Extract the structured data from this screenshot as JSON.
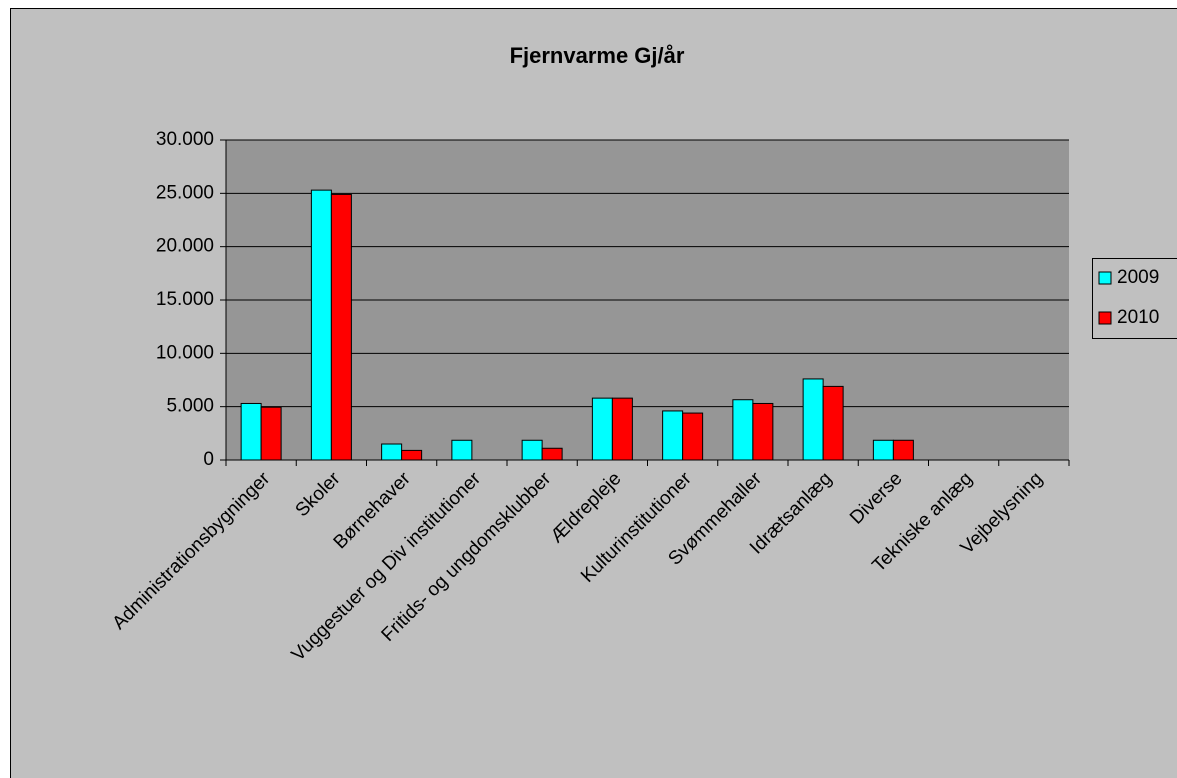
{
  "chart_data": {
    "type": "bar",
    "title": "Fjernvarme Gj/år",
    "categories": [
      "Administrationsbygninger",
      "Skoler",
      "Børnehaver",
      "Vuggestuer og Div institutioner",
      "Fritids- og ungdomsklubber",
      "Ældrepleje",
      "Kulturinstitutioner",
      "Svømmehaller",
      "Idrætsanlæg",
      "Diverse",
      "Tekniske anlæg",
      "Vejbelysning"
    ],
    "series": [
      {
        "name": "2009",
        "color": "#00ffff",
        "values": [
          5300,
          25300,
          1500,
          1850,
          1850,
          5800,
          4600,
          5650,
          7600,
          1850,
          null,
          null
        ]
      },
      {
        "name": "2010",
        "color": "#ff0000",
        "values": [
          4950,
          24900,
          900,
          null,
          1100,
          5800,
          4400,
          5300,
          6900,
          1850,
          null,
          null
        ]
      }
    ],
    "ylim": [
      0,
      30000
    ],
    "yticks": [
      0,
      {
        "value": 5000,
        "label": "5.000"
      },
      {
        "value": 10000,
        "label": "10.000"
      },
      {
        "value": 15000,
        "label": "15.000"
      },
      {
        "value": 20000,
        "label": "20.000"
      },
      {
        "value": 25000,
        "label": "25.000"
      },
      {
        "value": 30000,
        "label": "30.000"
      }
    ],
    "grid": true,
    "legend": "right"
  }
}
